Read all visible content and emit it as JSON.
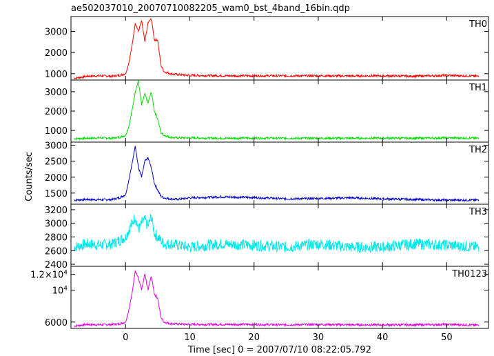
{
  "title": "ae502037010_20070710082205_wam0_bst_4band_16bin.qdp",
  "chart_data": {
    "type": "line",
    "title": "ae502037010_20070710082205_wam0_bst_4band_16bin.qdp",
    "xlabel": "Time [sec] 0 = 2007/07/10 08:22:05.792",
    "ylabel": "Counts/sec",
    "xlim": [
      -8.5,
      56.5
    ],
    "xticks": [
      0,
      10,
      20,
      30,
      40,
      50
    ],
    "xtick_labels": [
      "0",
      "10",
      "20",
      "30",
      "40",
      "50"
    ],
    "grid": false,
    "panels": [
      {
        "name": "TH0",
        "color": "#ff0000",
        "ylim": [
          700,
          3700
        ],
        "yticks": [
          1000,
          2000,
          3000
        ],
        "ytick_labels": [
          "1000",
          "2000",
          "3000"
        ],
        "x": [
          -8,
          -6,
          -4,
          -2,
          -1,
          0,
          0.5,
          1,
          1.5,
          2,
          2.5,
          3,
          3.5,
          4,
          4.5,
          5,
          5.5,
          6,
          7,
          8,
          10,
          15,
          20,
          25,
          30,
          35,
          40,
          45,
          50,
          55
        ],
        "y": [
          780,
          880,
          900,
          880,
          920,
          1000,
          1500,
          2300,
          3400,
          3000,
          3500,
          2500,
          3400,
          3600,
          2600,
          2600,
          1400,
          1100,
          1000,
          960,
          920,
          900,
          900,
          900,
          900,
          890,
          900,
          880,
          920,
          880
        ]
      },
      {
        "name": "TH1",
        "color": "#00dd00",
        "ylim": [
          400,
          3600
        ],
        "yticks": [
          1000,
          2000,
          3000
        ],
        "ytick_labels": [
          "1000",
          "2000",
          "3000"
        ],
        "x": [
          -8,
          -6,
          -4,
          -2,
          -1,
          0,
          0.5,
          1,
          1.5,
          2,
          2.5,
          3,
          3.5,
          4,
          4.5,
          5,
          5.5,
          6,
          7,
          8,
          10,
          15,
          20,
          25,
          30,
          35,
          40,
          45,
          50,
          55
        ],
        "y": [
          580,
          600,
          620,
          600,
          650,
          750,
          1200,
          2000,
          3000,
          3550,
          2300,
          2900,
          2400,
          3000,
          2000,
          1600,
          900,
          750,
          650,
          620,
          620,
          600,
          610,
          600,
          600,
          600,
          610,
          600,
          620,
          600
        ]
      },
      {
        "name": "TH2",
        "color": "#0000cc",
        "ylim": [
          1150,
          3100
        ],
        "yticks": [
          1500,
          2000,
          2500,
          3000
        ],
        "ytick_labels": [
          "1500",
          "2000",
          "2500",
          "3000"
        ],
        "x": [
          -8,
          -6,
          -4,
          -2,
          -1,
          0,
          0.5,
          1,
          1.5,
          2,
          2.5,
          3,
          3.5,
          4,
          4.5,
          5,
          5.5,
          6,
          7,
          8,
          10,
          15,
          20,
          25,
          30,
          35,
          40,
          45,
          50,
          55
        ],
        "y": [
          1280,
          1300,
          1290,
          1300,
          1350,
          1450,
          1900,
          2400,
          3000,
          2300,
          2000,
          2500,
          2600,
          2300,
          1800,
          1600,
          1400,
          1350,
          1320,
          1300,
          1350,
          1380,
          1360,
          1320,
          1330,
          1350,
          1320,
          1300,
          1280,
          1280
        ]
      },
      {
        "name": "TH3",
        "color": "#00e8e8",
        "ylim": [
          2370,
          3280
        ],
        "yticks": [
          2400,
          2600,
          2800,
          3000,
          3200
        ],
        "ytick_labels": [
          "2400",
          "2600",
          "2800",
          "3000",
          "3200"
        ],
        "x": [
          -8,
          -6,
          -4,
          -2,
          -1,
          0,
          0.5,
          1,
          1.5,
          2,
          2.5,
          3,
          3.5,
          4,
          4.5,
          5,
          5.5,
          6,
          7,
          8,
          10,
          15,
          20,
          25,
          30,
          35,
          40,
          45,
          50,
          55
        ],
        "y": [
          2650,
          2700,
          2680,
          2700,
          2750,
          2800,
          2900,
          3000,
          3100,
          2900,
          3000,
          3050,
          2950,
          3100,
          2850,
          2800,
          2750,
          2700,
          2700,
          2680,
          2650,
          2700,
          2680,
          2650,
          2700,
          2650,
          2650,
          2700,
          2680,
          2650
        ]
      },
      {
        "name": "TH0123",
        "color": "#e000e0",
        "ylim": [
          5200,
          13000
        ],
        "yticks": [
          6000,
          10000,
          12000
        ],
        "ytick_labels": [
          "6000",
          "10^4",
          "1.2×10^4"
        ],
        "x": [
          -8,
          -6,
          -4,
          -2,
          -1,
          0,
          0.5,
          1,
          1.5,
          2,
          2.5,
          3,
          3.5,
          4,
          4.5,
          5,
          5.5,
          6,
          7,
          8,
          10,
          15,
          20,
          25,
          30,
          35,
          40,
          45,
          50,
          55
        ],
        "y": [
          5500,
          5700,
          5650,
          5700,
          5750,
          6000,
          7500,
          9500,
          12500,
          11500,
          10000,
          12000,
          10000,
          11800,
          9500,
          9000,
          6600,
          6000,
          5800,
          5750,
          5700,
          5700,
          5700,
          5650,
          5700,
          5650,
          5650,
          5650,
          5700,
          5600
        ]
      }
    ]
  }
}
